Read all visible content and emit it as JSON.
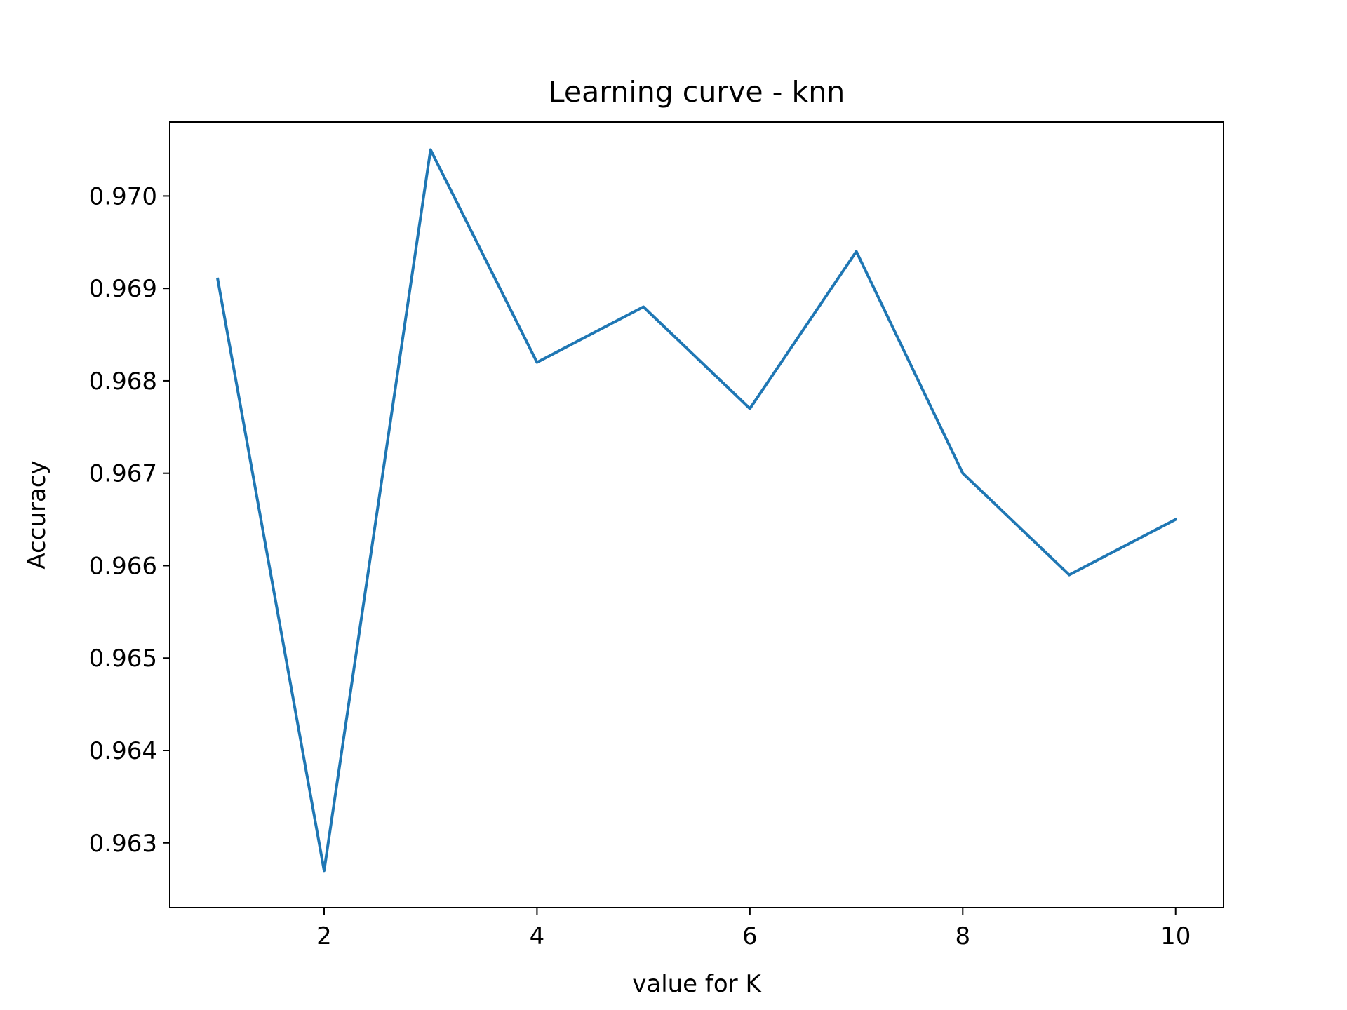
{
  "chart_data": {
    "type": "line",
    "title": "Learning curve - knn",
    "xlabel": "value for K",
    "ylabel": "Accuracy",
    "xlim": [
      0.55,
      10.45
    ],
    "ylim": [
      0.9623,
      0.9708
    ],
    "x_ticks": [
      2,
      4,
      6,
      8,
      10
    ],
    "x_tick_labels": [
      "2",
      "4",
      "6",
      "8",
      "10"
    ],
    "y_ticks": [
      0.963,
      0.964,
      0.965,
      0.966,
      0.967,
      0.968,
      0.969,
      0.97
    ],
    "y_tick_labels": [
      "0.963",
      "0.964",
      "0.965",
      "0.966",
      "0.967",
      "0.968",
      "0.969",
      "0.970"
    ],
    "grid": false,
    "series": [
      {
        "color": "#1f77b4",
        "x": [
          1,
          2,
          3,
          4,
          5,
          6,
          7,
          8,
          9,
          10
        ],
        "y": [
          0.9691,
          0.9627,
          0.9705,
          0.9682,
          0.9688,
          0.9677,
          0.9694,
          0.967,
          0.9659,
          0.9665
        ]
      }
    ]
  }
}
